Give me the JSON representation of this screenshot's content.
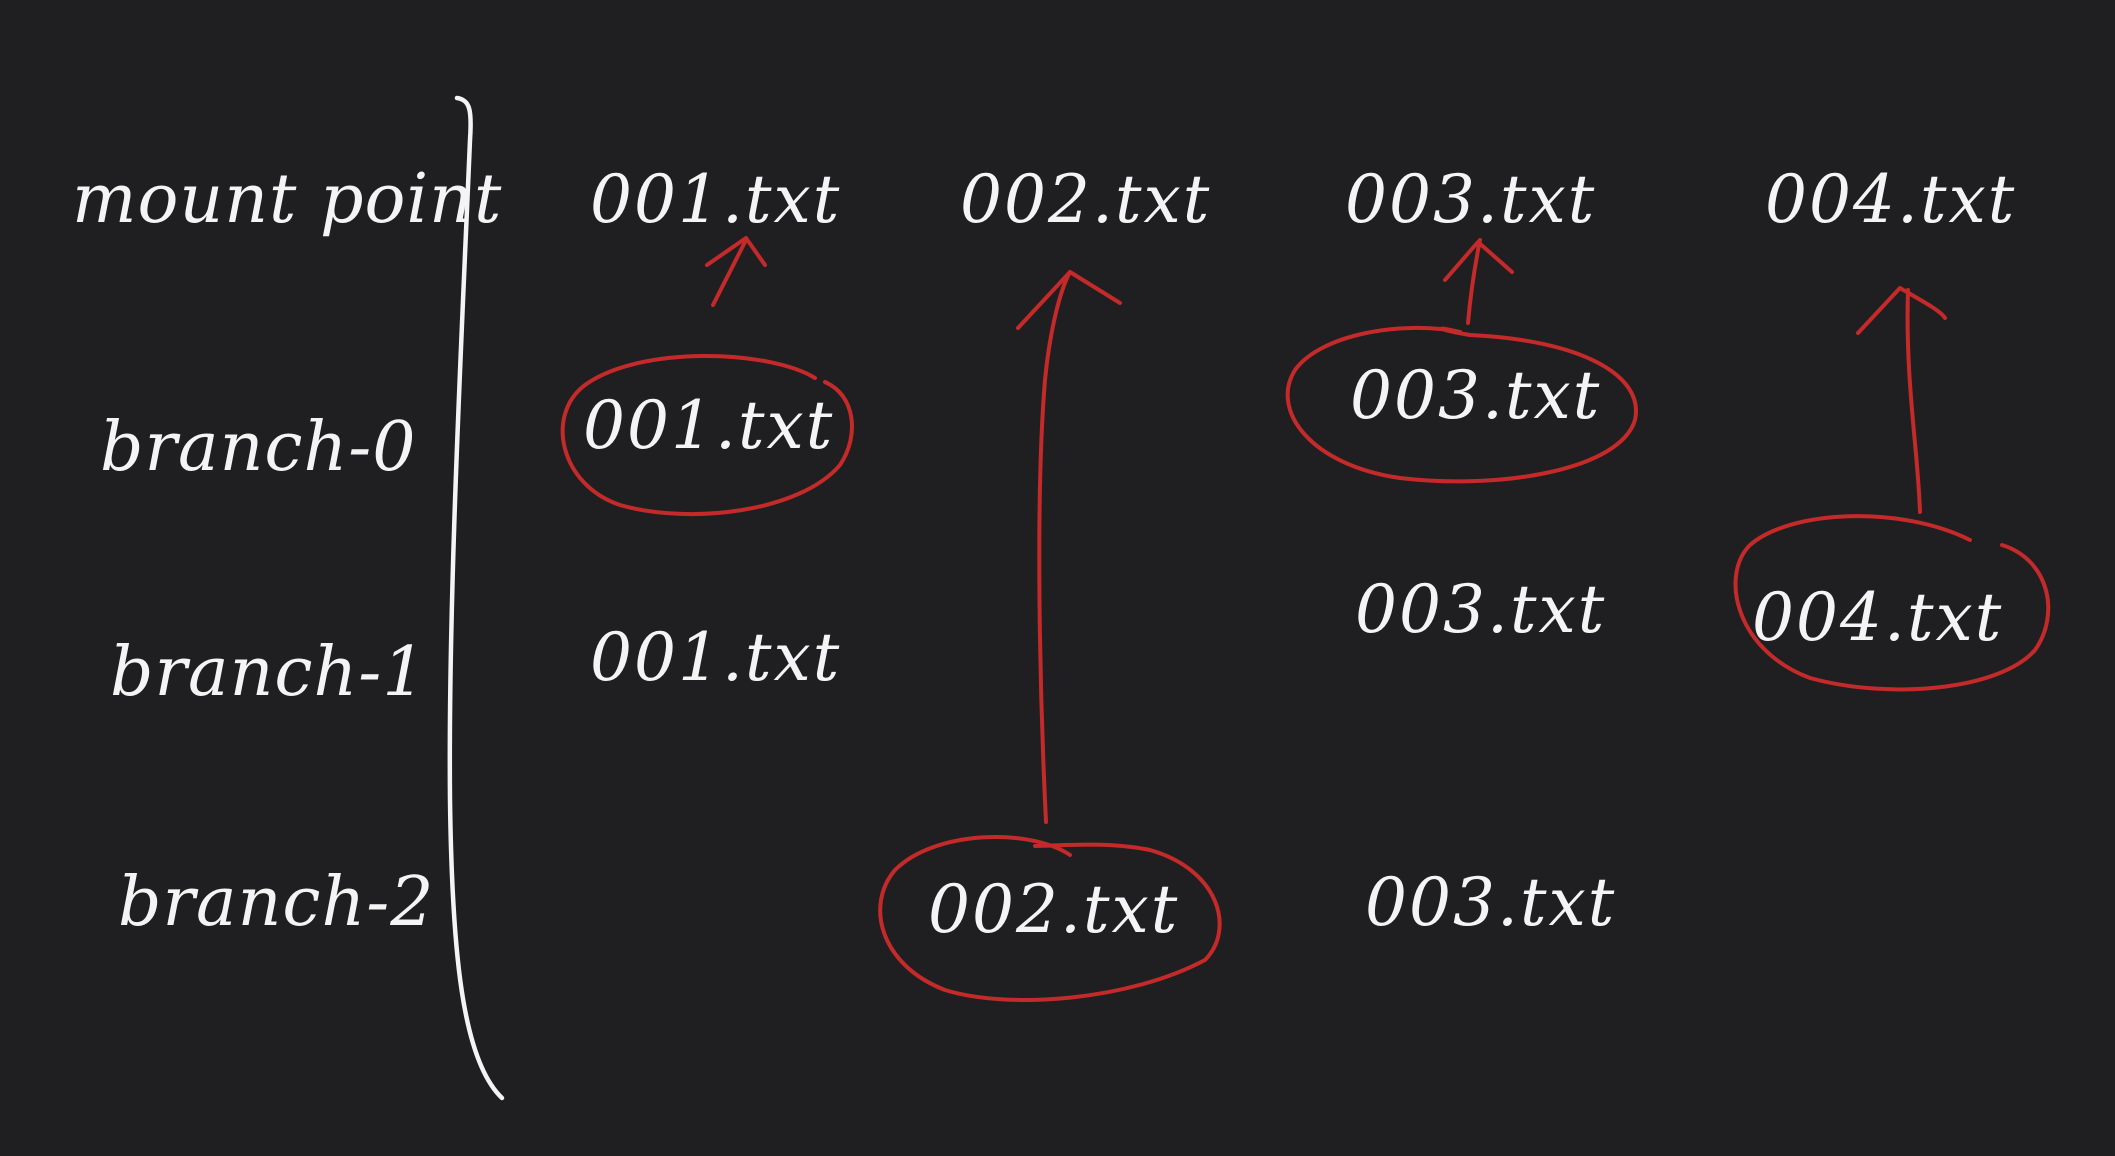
{
  "colors": {
    "background": "#1f1f21",
    "ink": "#f4f4f4",
    "highlight": "#c42a2a"
  },
  "rows": [
    {
      "key": "mount",
      "label": "mount point"
    },
    {
      "key": "b0",
      "label": "branch-0"
    },
    {
      "key": "b1",
      "label": "branch-1"
    },
    {
      "key": "b2",
      "label": "branch-2"
    }
  ],
  "files": {
    "mount": {
      "f1": "001.txt",
      "f2": "002.txt",
      "f3": "003.txt",
      "f4": "004.txt"
    },
    "b0": {
      "f1": "001.txt",
      "f3": "003.txt"
    },
    "b1": {
      "f1": "001.txt",
      "f3": "003.txt",
      "f4": "004.txt"
    },
    "b2": {
      "f2": "002.txt",
      "f3": "003.txt"
    }
  },
  "selected": {
    "f1": "branch-0",
    "f2": "branch-2",
    "f3": "branch-0",
    "f4": "branch-1"
  }
}
